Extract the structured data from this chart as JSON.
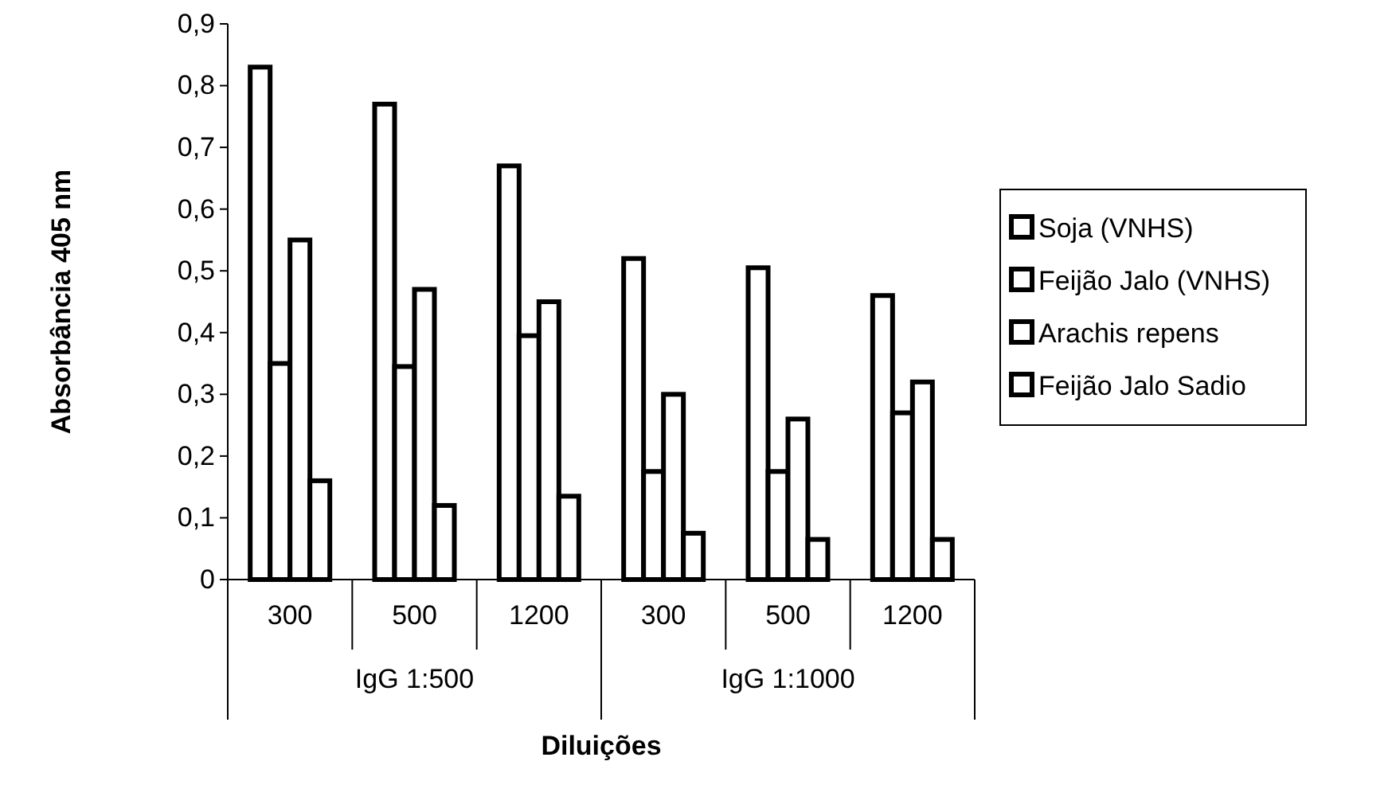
{
  "chart_data": {
    "type": "bar",
    "xlabel": "Diluições",
    "ylabel": "Absorbância 405 nm",
    "categories": [
      "300",
      "500",
      "1200",
      "300",
      "500",
      "1200"
    ],
    "annotations": [
      "IgG 1:500",
      "IgG 1:1000"
    ],
    "series": [
      {
        "name": "Soja (VNHS)",
        "color": "#ffffff",
        "values": [
          0.83,
          0.77,
          0.67,
          0.52,
          0.505,
          0.46
        ]
      },
      {
        "name": "Feijão Jalo (VNHS)",
        "color": "#ffffff",
        "values": [
          0.35,
          0.345,
          0.395,
          0.175,
          0.175,
          0.27
        ]
      },
      {
        "name": "Arachis repens",
        "color": "#ffffff",
        "values": [
          0.55,
          0.47,
          0.45,
          0.3,
          0.26,
          0.32
        ]
      },
      {
        "name": "Feijão Jalo Sadio",
        "color": "#ffffff",
        "values": [
          0.16,
          0.12,
          0.135,
          0.075,
          0.065,
          0.065
        ]
      }
    ],
    "ylim": [
      0,
      0.9
    ],
    "yticks": [
      {
        "value": 0,
        "label": "0"
      },
      {
        "value": 0.1,
        "label": "0,1"
      },
      {
        "value": 0.2,
        "label": "0,2"
      },
      {
        "value": 0.3,
        "label": "0,3"
      },
      {
        "value": 0.4,
        "label": "0,4"
      },
      {
        "value": 0.5,
        "label": "0,5"
      },
      {
        "value": 0.6,
        "label": "0,6"
      },
      {
        "value": 0.7,
        "label": "0,7"
      },
      {
        "value": 0.8,
        "label": "0,8"
      },
      {
        "value": 0.9,
        "label": "0,9"
      }
    ],
    "grid": false,
    "legend": "right"
  }
}
